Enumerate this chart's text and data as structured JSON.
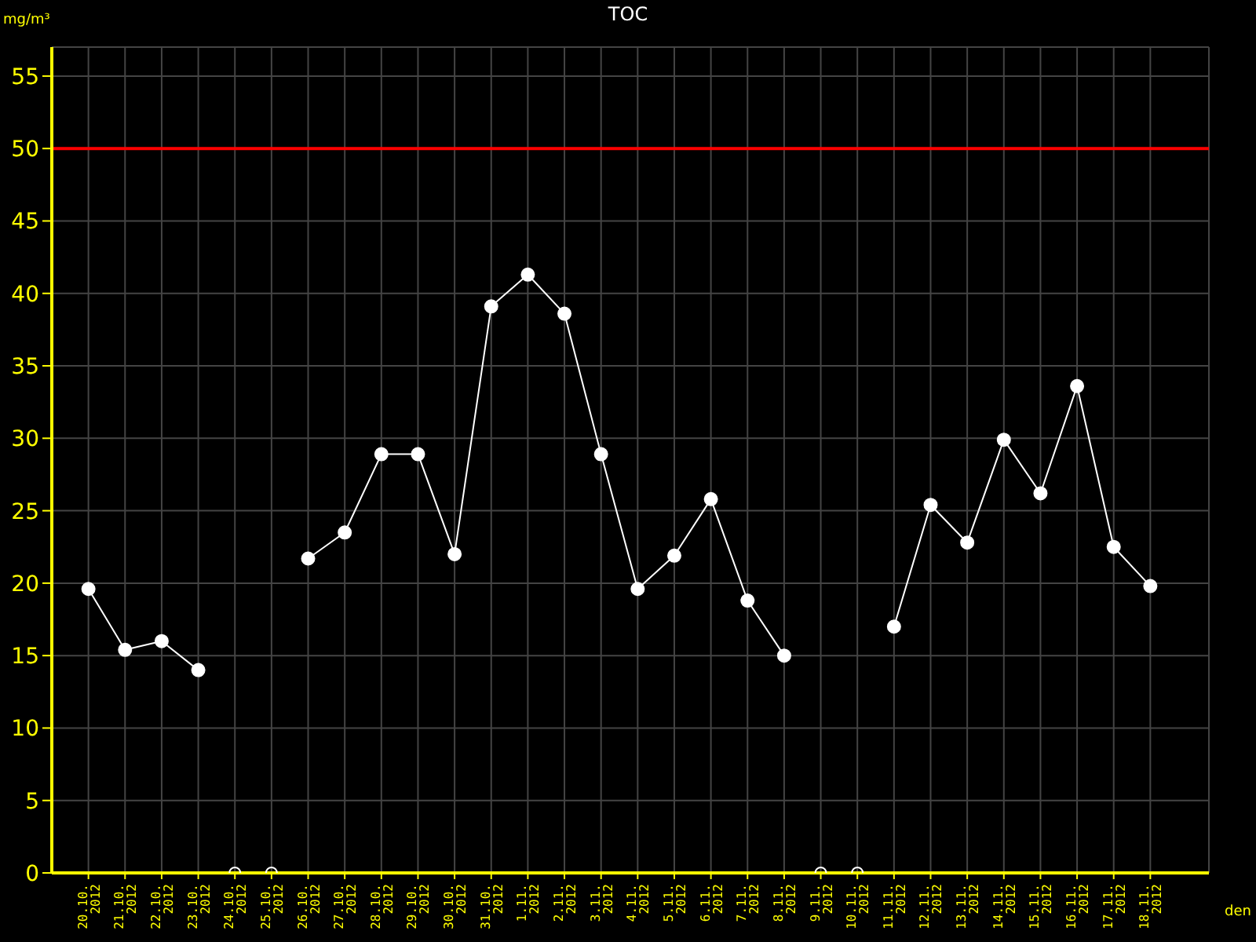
{
  "chart_data": {
    "type": "line",
    "title": "TOC",
    "xlabel": "den",
    "ylabel": "mg/m³",
    "categories": [
      "20.10.\n2012",
      "21.10.\n2012",
      "22.10.\n2012",
      "23.10.\n2012",
      "24.10.\n2012",
      "25.10.\n2012",
      "26.10.\n2012",
      "27.10.\n2012",
      "28.10.\n2012",
      "29.10.\n2012",
      "30.10.\n2012",
      "31.10.\n2012",
      "1.11.\n2012",
      "2.11.\n2012",
      "3.11.\n2012",
      "4.11.\n2012",
      "5.11.\n2012",
      "6.11.\n2012",
      "7.11.\n2012",
      "8.11.\n2012",
      "9.11.\n2012",
      "10.11.\n2012",
      "11.11.\n2012",
      "12.11.\n2012",
      "13.11.\n2012",
      "14.11.\n2012",
      "15.11.\n2012",
      "16.11.\n2012",
      "17.11.\n2012",
      "18.11.\n2012"
    ],
    "series": [
      {
        "color": "#ffffff",
        "values": [
          19.6,
          15.4,
          16.0,
          14.0,
          null,
          null,
          21.7,
          23.5,
          28.9,
          28.9,
          22.0,
          39.1,
          41.3,
          38.6,
          28.9,
          19.6,
          21.9,
          25.8,
          18.8,
          15.0,
          null,
          null,
          17.0,
          25.4,
          22.8,
          29.9,
          26.2,
          33.6,
          22.5,
          19.8
        ]
      },
      {
        "type": "scatter",
        "color": "#ffffff",
        "values": [
          null,
          null,
          null,
          null,
          0,
          0,
          null,
          null,
          null,
          null,
          null,
          null,
          null,
          null,
          null,
          null,
          null,
          null,
          null,
          null,
          0,
          0,
          null,
          null,
          null,
          null,
          null,
          null,
          null,
          null
        ]
      }
    ],
    "ylim": [
      0,
      57
    ],
    "yticks": [
      0,
      5,
      10,
      15,
      20,
      25,
      30,
      35,
      40,
      45,
      50,
      55
    ],
    "grid": true,
    "marker": "circle",
    "ref_lines": [
      {
        "axis": "y",
        "value": 50,
        "color": "#ff0000"
      }
    ]
  }
}
